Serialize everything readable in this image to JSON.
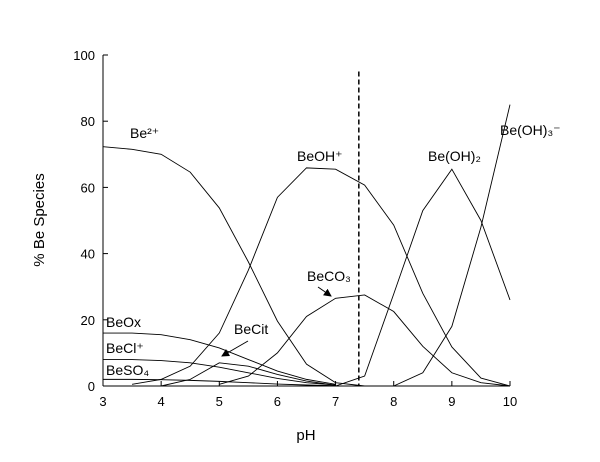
{
  "chart_data": {
    "type": "line",
    "x_label": "pH",
    "y_label": "% Be Species",
    "x": [
      3,
      3.5,
      4,
      4.5,
      5,
      5.5,
      6,
      6.5,
      7,
      7.5,
      8,
      8.5,
      9,
      9.5,
      10
    ],
    "xlim": [
      3,
      10
    ],
    "xticks": [
      3,
      4,
      5,
      6,
      7,
      8,
      9,
      10
    ],
    "ylim": [
      0,
      100
    ],
    "yticks": [
      0,
      20,
      40,
      60,
      80,
      100
    ],
    "vline": {
      "x": 7.4,
      "ytop": 95,
      "style": "dashed"
    },
    "series": [
      {
        "name": "Be²⁺",
        "color": "#000000",
        "values": [
          72.3,
          71.5,
          70,
          64.6,
          53.8,
          37.5,
          19.6,
          6.6,
          1,
          0,
          null,
          null,
          null,
          null,
          null
        ]
      },
      {
        "name": "BeOH⁺",
        "color": "#000000",
        "values": [
          null,
          0.5,
          2,
          6,
          16,
          35,
          57,
          65.9,
          65.5,
          60.7,
          48.6,
          28,
          11.8,
          2.4,
          0
        ]
      },
      {
        "name": "Be(OH)₂",
        "color": "#000000",
        "values": [
          null,
          null,
          null,
          null,
          null,
          null,
          null,
          null,
          0,
          3,
          27.8,
          53,
          65.5,
          50,
          26
        ]
      },
      {
        "name": "Be(OH)₃⁻",
        "color": "#000000",
        "values": [
          null,
          null,
          null,
          null,
          null,
          null,
          null,
          null,
          null,
          null,
          0,
          4,
          18,
          48,
          85
        ]
      },
      {
        "name": "BeCO₃",
        "color": "#000000",
        "values": [
          null,
          null,
          null,
          null,
          0.5,
          3,
          10,
          21,
          26.5,
          27.5,
          22.5,
          12,
          4,
          1,
          0
        ]
      },
      {
        "name": "BeOx",
        "color": "#000000",
        "values": [
          16,
          16,
          15.5,
          14,
          11.5,
          8,
          4.5,
          2,
          0.5,
          null,
          null,
          null,
          null,
          null,
          null
        ]
      },
      {
        "name": "BeCl⁺",
        "color": "#000000",
        "values": [
          8,
          8,
          7.7,
          7,
          5.7,
          4,
          2.3,
          1,
          0.3,
          null,
          null,
          null,
          null,
          null,
          null
        ]
      },
      {
        "name": "BeSO₄",
        "color": "#000000",
        "values": [
          2,
          2,
          1.9,
          1.7,
          1.4,
          1,
          0.6,
          0.3,
          0.1,
          null,
          null,
          null,
          null,
          null,
          null
        ]
      },
      {
        "name": "BeCit",
        "color": "#000000",
        "values": [
          null,
          null,
          0,
          2,
          7,
          6,
          3.5,
          1.5,
          0.2,
          null,
          null,
          null,
          null,
          null,
          null
        ]
      }
    ]
  }
}
